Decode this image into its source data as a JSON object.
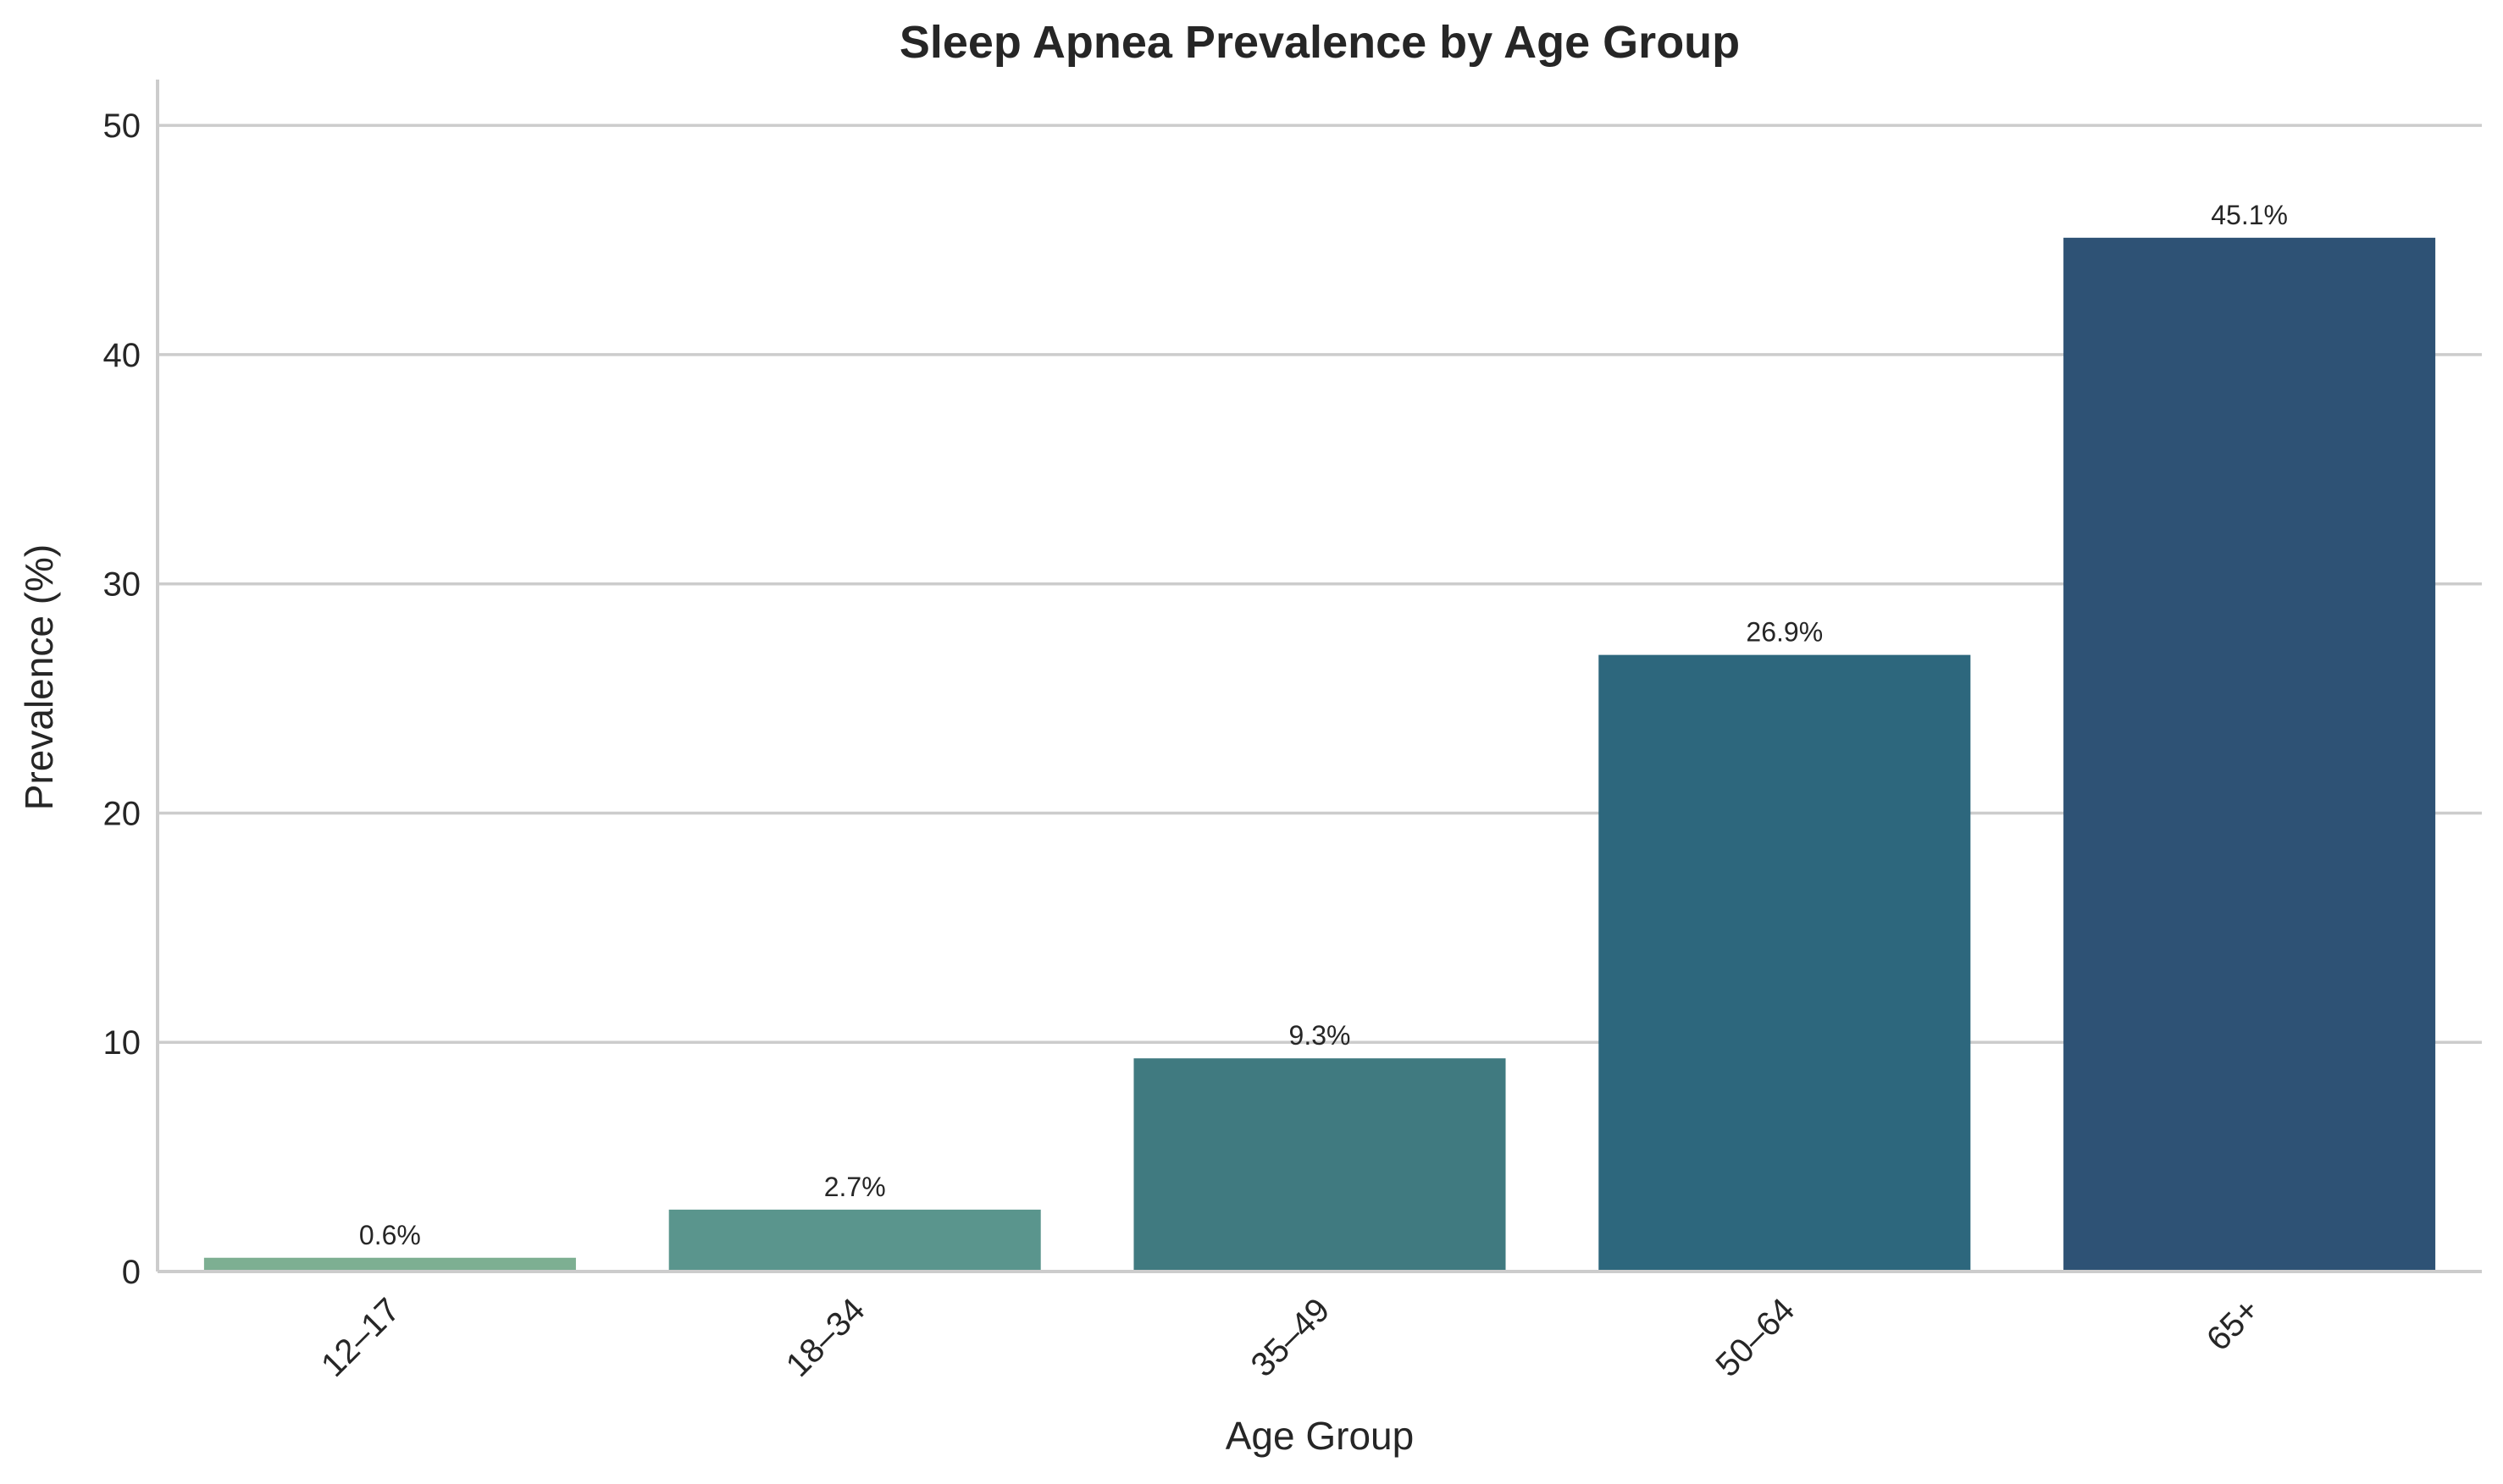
{
  "chart_data": {
    "type": "bar",
    "title": "Sleep Apnea Prevalence by Age Group",
    "xlabel": "Age Group",
    "ylabel": "Prevalence (%)",
    "categories": [
      "12–17",
      "18–34",
      "35–49",
      "50–64",
      "65+"
    ],
    "values": [
      0.6,
      2.7,
      9.3,
      26.9,
      45.1
    ],
    "data_labels": [
      "0.6%",
      "2.7%",
      "9.3%",
      "26.9%",
      "45.1%"
    ],
    "yticks": [
      0,
      10,
      20,
      30,
      40,
      50
    ],
    "ylim": [
      0,
      52
    ],
    "grid": "horizontal",
    "colors": [
      "#7daf92",
      "#5a958d",
      "#407a80",
      "#2d677d",
      "#2e5275"
    ]
  }
}
